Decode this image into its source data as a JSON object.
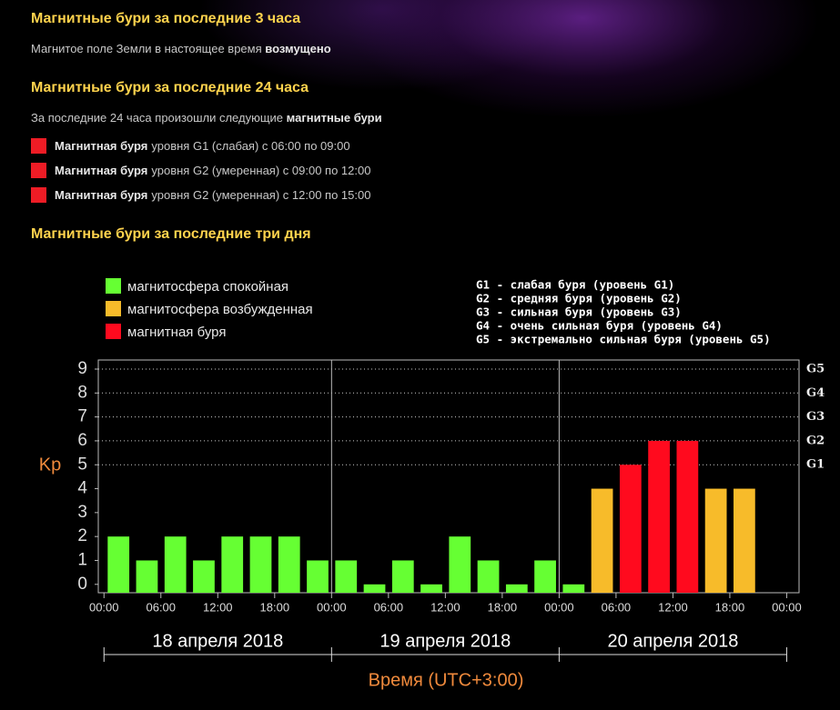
{
  "header": {
    "now_title": "Магнитные бури за последние 3 часа",
    "now_text": {
      "text": "Магнитое поле Земли в настоящее время",
      "emphasis": "возмущено"
    },
    "day_title": "Магнитные бури за последние 24 часа",
    "day_text": {
      "text": "За последние 24 часа произошли следующие",
      "emphasis": "магнитные бури"
    },
    "marker_color": "#ee1c25",
    "storms": [
      {
        "emphasis": "Магнитная буря",
        "text": "уровня G1 (слабая) с 06:00 по 09:00"
      },
      {
        "emphasis": "Магнитная буря",
        "text": "уровня G2 (умеренная) с 09:00 по 12:00"
      },
      {
        "emphasis": "Магнитная буря",
        "text": "уровня G2 (умеренная) с 12:00 по 15:00"
      }
    ],
    "chart_title": "Магнитные бури за последние три дня"
  },
  "chart_data": {
    "type": "bar",
    "ylabel": "Kp",
    "xlabel": "Время (UTC+3:00)",
    "x": [
      0,
      3,
      6,
      9,
      12,
      15,
      18,
      21,
      24,
      27,
      30,
      33,
      36,
      39,
      42,
      45,
      48,
      51,
      54,
      57,
      60,
      63,
      66,
      69
    ],
    "series": [
      {
        "name": "магнитосфера спокойная",
        "color": "#66ff33",
        "values": [
          2,
          1,
          2,
          1,
          2,
          2,
          2,
          1,
          1,
          0,
          1,
          0,
          2,
          1,
          0,
          1,
          0,
          null,
          null,
          null,
          null,
          null,
          null,
          null
        ]
      },
      {
        "name": "магнитосфера возбужденная",
        "color": "#f7bb2a",
        "values": [
          null,
          null,
          null,
          null,
          null,
          null,
          null,
          null,
          null,
          null,
          null,
          null,
          null,
          null,
          null,
          null,
          null,
          4,
          null,
          null,
          null,
          4,
          4,
          null
        ]
      },
      {
        "name": "магнитная буря",
        "color": "#ff0a1e",
        "values": [
          null,
          null,
          null,
          null,
          null,
          null,
          null,
          null,
          null,
          null,
          null,
          null,
          null,
          null,
          null,
          null,
          null,
          null,
          5,
          6,
          6,
          null,
          null,
          null
        ]
      }
    ],
    "xlim": [
      -0.6,
      73.3
    ],
    "xticks": [
      {
        "value": 0,
        "label": "00:00"
      },
      {
        "value": 6,
        "label": "06:00"
      },
      {
        "value": 12,
        "label": "12:00"
      },
      {
        "value": 18,
        "label": "18:00"
      },
      {
        "value": 24,
        "label": "00:00"
      },
      {
        "value": 30,
        "label": "06:00"
      },
      {
        "value": 36,
        "label": "12:00"
      },
      {
        "value": 42,
        "label": "18:00"
      },
      {
        "value": 48,
        "label": "00:00"
      },
      {
        "value": 54,
        "label": "06:00"
      },
      {
        "value": 60,
        "label": "12:00"
      },
      {
        "value": 66,
        "label": "18:00"
      },
      {
        "value": 72,
        "label": "00:00"
      }
    ],
    "ylim": [
      -0.35,
      9.38
    ],
    "yticks": [
      0,
      1,
      2,
      3,
      4,
      5,
      6,
      7,
      8,
      9
    ],
    "y2lim": [
      -0.35,
      9.38
    ],
    "y2ticks": [
      {
        "value": 5,
        "label": "G1"
      },
      {
        "value": 6,
        "label": "G2"
      },
      {
        "value": 7,
        "label": "G3"
      },
      {
        "value": 8,
        "label": "G4"
      },
      {
        "value": 9,
        "label": "G5"
      }
    ],
    "grid": true,
    "day_separators": [
      24,
      48
    ],
    "day_labels": [
      "18 апреля 2018",
      "19 апреля 2018",
      "20 апреля 2018"
    ],
    "g_legend": [
      "G1 - слабая буря (уровень G1)",
      "G2 - средняя буря (уровень G2)",
      "G3 - сильная буря (уровень G3)",
      "G4 - очень сильная буря (уровень G4)",
      "G5 - экстремально сильная буря (уровень G5)"
    ]
  }
}
